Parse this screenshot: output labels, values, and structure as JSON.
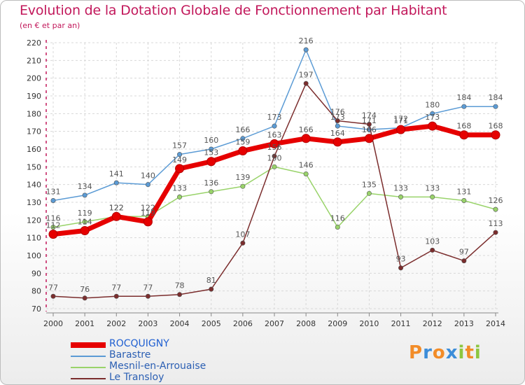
{
  "title": "Evolution de la Dotation Globale de Fonctionnement par Habitant",
  "subtitle": "(en € et par an)",
  "logo": {
    "text": "Proxiti",
    "letters": [
      "P",
      "r",
      "o",
      "x",
      "i",
      "t",
      "i"
    ],
    "colors": [
      "#f28c28",
      "#3c8dd9",
      "#f28c28",
      "#3c8dd9",
      "#8dc63f",
      "#f28c28",
      "#8dc63f"
    ]
  },
  "colors": {
    "title": "#c2185b",
    "axis": "#c2185b",
    "grid": "#d8d8d8"
  },
  "chart_data": {
    "type": "line",
    "title": "Evolution de la Dotation Globale de Fonctionnement par Habitant",
    "subtitle": "(en € et par an)",
    "xlabel": "",
    "ylabel": "",
    "x": [
      "2000",
      "2001",
      "2002",
      "2003",
      "2004",
      "2005",
      "2006",
      "2007",
      "2008",
      "2009",
      "2010",
      "2011",
      "2012",
      "2013",
      "2014"
    ],
    "ylim": [
      70,
      220
    ],
    "yticks": [
      70,
      80,
      90,
      100,
      110,
      120,
      130,
      140,
      150,
      160,
      170,
      180,
      190,
      200,
      210,
      220
    ],
    "grid": true,
    "legend_position": "bottom-left",
    "series": [
      {
        "name": "ROCQUIGNY",
        "color": "#e60000",
        "bold": true,
        "values": [
          112,
          114,
          122,
          119,
          149,
          153,
          159,
          163,
          166,
          164,
          166,
          171,
          173,
          168,
          168
        ]
      },
      {
        "name": "Barastre",
        "color": "#5b9bd5",
        "bold": false,
        "values": [
          131,
          134,
          141,
          140,
          157,
          160,
          166,
          173,
          216,
          173,
          171,
          172,
          180,
          184,
          184
        ]
      },
      {
        "name": "Mesnil-en-Arrouaise",
        "color": "#99d36a",
        "bold": false,
        "values": [
          116,
          119,
          122,
          122,
          133,
          136,
          139,
          150,
          146,
          116,
          135,
          133,
          133,
          131,
          126
        ]
      },
      {
        "name": "Le Transloy",
        "color": "#7b2d2d",
        "bold": false,
        "values": [
          77,
          76,
          77,
          77,
          78,
          81,
          107,
          156,
          197,
          176,
          174,
          93,
          103,
          97,
          113
        ]
      }
    ]
  }
}
